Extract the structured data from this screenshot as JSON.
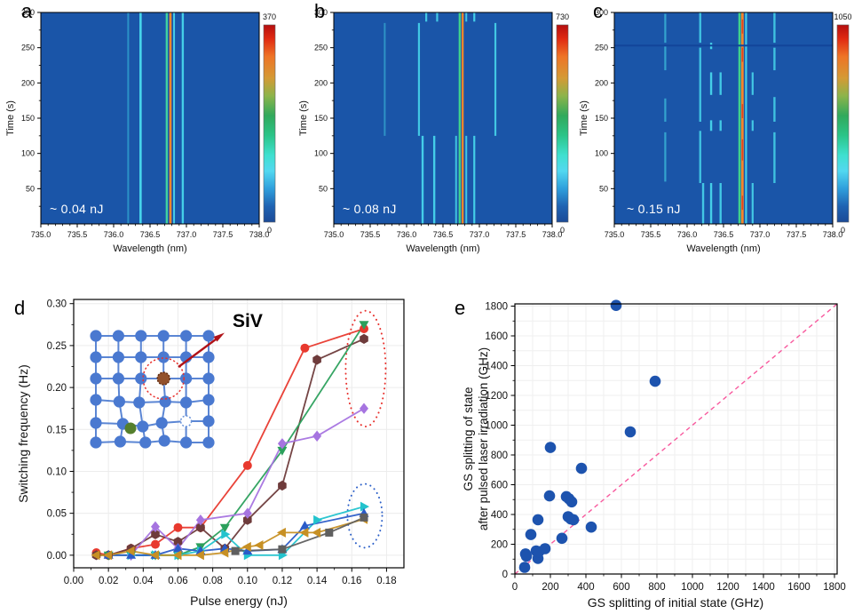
{
  "chart_data": [
    {
      "type": "heatmap",
      "panel": "a",
      "annotation": "~ 0.04 nJ",
      "xlabel": "Wavelength (nm)",
      "ylabel": "Time (s)",
      "xlim": [
        735.0,
        738.0
      ],
      "ylim": [
        0,
        300
      ],
      "xticks": [
        735.0,
        735.5,
        736.0,
        736.5,
        737.0,
        737.5,
        738.0
      ],
      "yticks": [
        50,
        100,
        150,
        200,
        250,
        300
      ],
      "colorbar": {
        "min": 0,
        "max": 370
      },
      "background": "#1a55a8",
      "lines": [
        {
          "wl": 736.2,
          "color": "#37b9dd",
          "width": 2.0,
          "opacity": 0.6,
          "segments": [
            [
              0,
              300
            ]
          ]
        },
        {
          "wl": 736.37,
          "color": "#49dcef",
          "width": 2.6,
          "opacity": 0.95,
          "segments": [
            [
              0,
              300
            ]
          ]
        },
        {
          "wl": 736.73,
          "color": "#43d9a0",
          "width": 2.4,
          "opacity": 0.95,
          "segments": [
            [
              0,
              300
            ]
          ]
        },
        {
          "wl": 736.78,
          "color": "#f5862b",
          "width": 2.6,
          "opacity": 1.0,
          "segments": [
            [
              0,
              300
            ]
          ]
        },
        {
          "wl": 736.83,
          "color": "#49dcef",
          "width": 2.0,
          "opacity": 0.9,
          "segments": [
            [
              0,
              300
            ]
          ]
        },
        {
          "wl": 736.95,
          "color": "#49dcef",
          "width": 2.4,
          "opacity": 0.9,
          "segments": [
            [
              0,
              300
            ]
          ]
        }
      ]
    },
    {
      "type": "heatmap",
      "panel": "b",
      "annotation": "~ 0.08 nJ",
      "xlabel": "Wavelength (nm)",
      "ylabel": "Time (s)",
      "xlim": [
        735.0,
        738.0
      ],
      "ylim": [
        0,
        300
      ],
      "xticks": [
        735.0,
        735.5,
        736.0,
        736.5,
        737.0,
        737.5,
        738.0
      ],
      "yticks": [
        50,
        100,
        150,
        200,
        250,
        300
      ],
      "colorbar": {
        "min": 0,
        "max": 730
      },
      "background": "#1a55a8",
      "lines": [
        {
          "wl": 735.7,
          "color": "#3fc4e0",
          "width": 2.0,
          "opacity": 0.55,
          "segments": [
            [
              125,
              285
            ]
          ]
        },
        {
          "wl": 736.17,
          "color": "#49dcef",
          "width": 2.2,
          "opacity": 0.85,
          "segments": [
            [
              125,
              285
            ]
          ]
        },
        {
          "wl": 736.22,
          "color": "#49dcef",
          "width": 2.4,
          "opacity": 0.9,
          "segments": [
            [
              0,
              125
            ]
          ]
        },
        {
          "wl": 736.38,
          "color": "#49dcef",
          "width": 2.4,
          "opacity": 0.9,
          "segments": [
            [
              0,
              125
            ]
          ]
        },
        {
          "wl": 736.27,
          "color": "#49dcef",
          "width": 2.2,
          "opacity": 0.85,
          "segments": [
            [
              287,
              300
            ]
          ]
        },
        {
          "wl": 736.42,
          "color": "#49dcef",
          "width": 2.2,
          "opacity": 0.85,
          "segments": [
            [
              287,
              300
            ]
          ]
        },
        {
          "wl": 736.68,
          "color": "#49dcef",
          "width": 2.0,
          "opacity": 0.8,
          "segments": [
            [
              0,
              125
            ]
          ]
        },
        {
          "wl": 736.73,
          "color": "#43d98a",
          "width": 2.4,
          "opacity": 0.95,
          "segments": [
            [
              0,
              300
            ]
          ]
        },
        {
          "wl": 736.77,
          "color": "#f5862b",
          "width": 2.4,
          "opacity": 1.0,
          "segments": [
            [
              0,
              300
            ]
          ]
        },
        {
          "wl": 736.82,
          "color": "#49dcef",
          "width": 2.0,
          "opacity": 0.85,
          "segments": [
            [
              0,
              125
            ],
            [
              287,
              300
            ]
          ]
        },
        {
          "wl": 736.93,
          "color": "#49dcef",
          "width": 2.2,
          "opacity": 0.9,
          "segments": [
            [
              0,
              125
            ],
            [
              287,
              300
            ]
          ]
        },
        {
          "wl": 737.22,
          "color": "#49dcef",
          "width": 2.2,
          "opacity": 0.85,
          "segments": [
            [
              125,
              285
            ]
          ]
        }
      ]
    },
    {
      "type": "heatmap",
      "panel": "c",
      "annotation": "~ 0.15 nJ",
      "xlabel": "Wavelength (nm)",
      "ylabel": "Time (s)",
      "xlim": [
        735.0,
        738.0
      ],
      "ylim": [
        0,
        300
      ],
      "xticks": [
        735.0,
        735.5,
        736.0,
        736.5,
        737.0,
        737.5,
        738.0
      ],
      "yticks": [
        50,
        100,
        150,
        200,
        250,
        300
      ],
      "colorbar": {
        "min": 0,
        "max": 1050
      },
      "background": "#1a55a8",
      "hbands": [
        {
          "t": 253,
          "height": 2,
          "color": "#12459a"
        }
      ],
      "lines": [
        {
          "wl": 735.7,
          "color": "#3fc4e0",
          "width": 2.2,
          "opacity": 0.7,
          "segments": [
            [
              60,
              130
            ],
            [
              145,
              178
            ],
            [
              218,
              252
            ],
            [
              257,
              298
            ]
          ]
        },
        {
          "wl": 736.18,
          "color": "#49dcef",
          "width": 2.4,
          "opacity": 0.8,
          "segments": [
            [
              58,
              132
            ],
            [
              145,
              250
            ],
            [
              257,
              300
            ]
          ]
        },
        {
          "wl": 736.22,
          "color": "#49dcef",
          "width": 2.4,
          "opacity": 0.85,
          "segments": [
            [
              0,
              58
            ]
          ]
        },
        {
          "wl": 736.33,
          "color": "#49dcef",
          "width": 2.4,
          "opacity": 0.9,
          "segments": [
            [
              0,
              58
            ],
            [
              132,
              147
            ],
            [
              183,
              215
            ],
            [
              248,
              257
            ]
          ]
        },
        {
          "wl": 736.46,
          "color": "#49dcef",
          "width": 2.4,
          "opacity": 0.85,
          "segments": [
            [
              0,
              58
            ],
            [
              132,
              147
            ],
            [
              183,
              215
            ]
          ]
        },
        {
          "wl": 736.72,
          "color": "#43d98a",
          "width": 2.6,
          "opacity": 0.95,
          "segments": [
            [
              0,
              300
            ]
          ]
        },
        {
          "wl": 736.76,
          "color": "#f5862b",
          "width": 2.8,
          "opacity": 1.0,
          "segments": [
            [
              0,
              300
            ]
          ]
        },
        {
          "wl": 736.76,
          "color": "#e03218",
          "width": 1.2,
          "opacity": 0.9,
          "segments": [
            [
              20,
              40
            ],
            [
              90,
              120
            ],
            [
              150,
              170
            ],
            [
              230,
              250
            ],
            [
              270,
              290
            ]
          ]
        },
        {
          "wl": 736.81,
          "color": "#49dcef",
          "width": 2.2,
          "opacity": 0.9,
          "segments": [
            [
              0,
              300
            ]
          ]
        },
        {
          "wl": 736.9,
          "color": "#49dcef",
          "width": 2.2,
          "opacity": 0.85,
          "segments": [
            [
              0,
              58
            ],
            [
              132,
              147
            ],
            [
              183,
              215
            ]
          ]
        },
        {
          "wl": 737.2,
          "color": "#49dcef",
          "width": 2.4,
          "opacity": 0.8,
          "segments": [
            [
              58,
              130
            ],
            [
              145,
              180
            ],
            [
              218,
              250
            ],
            [
              257,
              300
            ]
          ]
        }
      ]
    },
    {
      "type": "line",
      "panel": "d",
      "xlabel": "Pulse energy (nJ)",
      "ylabel": "Switching frequency (Hz)",
      "xlim": [
        0,
        0.19
      ],
      "ylim": [
        -0.015,
        0.305
      ],
      "xticks": [
        0.0,
        0.02,
        0.04,
        0.06,
        0.08,
        0.1,
        0.12,
        0.14,
        0.16,
        0.18
      ],
      "yticks": [
        0.0,
        0.05,
        0.1,
        0.15,
        0.2,
        0.25,
        0.3
      ],
      "series": [
        {
          "name": "red-circle",
          "marker": "circle",
          "color": "#e8392e",
          "x": [
            0.013,
            0.02,
            0.033,
            0.047,
            0.06,
            0.073,
            0.1,
            0.133,
            0.167
          ],
          "y": [
            0.003,
            0.0,
            0.008,
            0.013,
            0.033,
            0.033,
            0.107,
            0.247,
            0.27
          ]
        },
        {
          "name": "maroon-hexagon",
          "marker": "hexagon",
          "color": "#6e3b3b",
          "x": [
            0.013,
            0.02,
            0.033,
            0.047,
            0.06,
            0.073,
            0.087,
            0.1,
            0.12,
            0.14,
            0.167
          ],
          "y": [
            0.0,
            0.0,
            0.008,
            0.025,
            0.016,
            0.033,
            0.008,
            0.042,
            0.083,
            0.233,
            0.258
          ]
        },
        {
          "name": "green-triangle-down",
          "marker": "triangle-down",
          "color": "#2ba05c",
          "x": [
            0.02,
            0.033,
            0.047,
            0.06,
            0.073,
            0.087,
            0.12,
            0.167
          ],
          "y": [
            0.0,
            0.0,
            0.0,
            0.0,
            0.01,
            0.033,
            0.125,
            0.275
          ]
        },
        {
          "name": "purple-diamond",
          "marker": "diamond",
          "color": "#a674e0",
          "x": [
            0.033,
            0.047,
            0.06,
            0.073,
            0.1,
            0.12,
            0.14,
            0.167
          ],
          "y": [
            0.0,
            0.034,
            0.008,
            0.042,
            0.05,
            0.133,
            0.142,
            0.175
          ]
        },
        {
          "name": "cyan-triangle-right",
          "marker": "triangle-right",
          "color": "#23c3cd",
          "x": [
            0.033,
            0.047,
            0.06,
            0.073,
            0.087,
            0.1,
            0.12,
            0.14,
            0.167
          ],
          "y": [
            0.0,
            0.0,
            0.0,
            0.005,
            0.025,
            0.0,
            0.0,
            0.042,
            0.058
          ]
        },
        {
          "name": "blue-triangle-up",
          "marker": "triangle-up",
          "color": "#2a5bc8",
          "x": [
            0.02,
            0.033,
            0.047,
            0.06,
            0.073,
            0.087,
            0.1,
            0.12,
            0.133,
            0.167
          ],
          "y": [
            0.0,
            0.0,
            0.0,
            0.008,
            0.005,
            0.008,
            0.005,
            0.007,
            0.035,
            0.05
          ]
        },
        {
          "name": "gold-triangle-left",
          "marker": "triangle-left",
          "color": "#c79024",
          "x": [
            0.013,
            0.02,
            0.033,
            0.047,
            0.06,
            0.073,
            0.087,
            0.1,
            0.107,
            0.12,
            0.133,
            0.14,
            0.167
          ],
          "y": [
            0.0,
            0.0,
            0.005,
            0.0,
            0.0,
            0.0,
            0.003,
            0.01,
            0.012,
            0.027,
            0.027,
            0.027,
            0.043
          ]
        },
        {
          "name": "gray-square",
          "marker": "square",
          "color": "#5f5f5f",
          "x": [
            0.093,
            0.12,
            0.147,
            0.167
          ],
          "y": [
            0.005,
            0.007,
            0.027,
            0.045
          ]
        }
      ],
      "ellipses": [
        {
          "cx": 0.168,
          "cy": 0.2225,
          "rx": 0.0115,
          "ry": 0.069,
          "color": "#e8322e"
        },
        {
          "cx": 0.1675,
          "cy": 0.047,
          "rx": 0.01,
          "ry": 0.038,
          "color": "#2b5fc8"
        }
      ],
      "inset": {
        "label": "SiV",
        "atom_color": "#4a79d0",
        "siv_color": "#92512c",
        "interstitial_color": "#557f2d",
        "arrow_color": "#b01218",
        "circle_color": "#e8322e"
      }
    },
    {
      "type": "scatter",
      "panel": "e",
      "xlabel": "GS splitting of initial state (GHz)",
      "ylabel_line1": "GS splitting of state",
      "ylabel_line2": "after pulsed laser irradiation (GHz)",
      "xlim": [
        0,
        1815
      ],
      "ylim": [
        0,
        1815
      ],
      "xticks": [
        0,
        200,
        400,
        600,
        800,
        1000,
        1200,
        1400,
        1600,
        1800
      ],
      "yticks": [
        0,
        200,
        400,
        600,
        800,
        1000,
        1200,
        1400,
        1600,
        1800
      ],
      "marker_color": "#1d53ae",
      "diagonal_color": "#f85a9e",
      "points": [
        [
          55,
          45
        ],
        [
          60,
          135
        ],
        [
          65,
          120
        ],
        [
          90,
          265
        ],
        [
          120,
          155
        ],
        [
          130,
          105
        ],
        [
          130,
          365
        ],
        [
          135,
          150
        ],
        [
          170,
          170
        ],
        [
          195,
          525
        ],
        [
          200,
          850
        ],
        [
          265,
          240
        ],
        [
          290,
          520
        ],
        [
          300,
          385
        ],
        [
          305,
          505
        ],
        [
          315,
          370
        ],
        [
          320,
          485
        ],
        [
          330,
          365
        ],
        [
          375,
          710
        ],
        [
          430,
          315
        ],
        [
          570,
          1805
        ],
        [
          650,
          955
        ],
        [
          790,
          1295
        ]
      ]
    }
  ]
}
